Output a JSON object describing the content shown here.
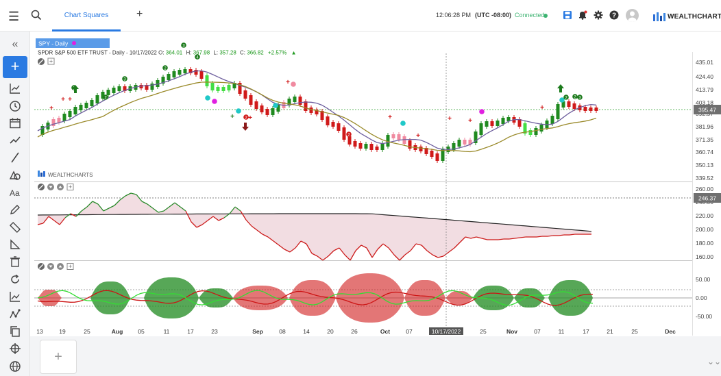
{
  "header": {
    "tab_label": "Chart Squares",
    "time": "12:06:28 PM",
    "timezone": "(UTC -08:00)",
    "status": "Connected",
    "brand": "WEALTHCHARTS"
  },
  "chart": {
    "badge": "SPY - Daily",
    "info_name": "SPDR S&P 500 ETF TRUST",
    "info_meta": " - Daily - 10/17/2022 ",
    "o_label": "O:",
    "o_value": "364.01",
    "h_label": "H:",
    "h_value": "367.98",
    "l_label": "L:",
    "l_value": "357.28",
    "c_label": "C:",
    "c_value": "366.82",
    "change": "+2.57%",
    "watermark": "WEALTHCHARTS",
    "crosshair_date": "10/17/2022",
    "price_axis": [
      "435.01",
      "424.40",
      "413.79",
      "403.18",
      "392.57",
      "381.96",
      "371.35",
      "360.74",
      "350.13",
      "339.52"
    ],
    "price_current": "395.47",
    "osc1_axis": [
      "260.00",
      "240.00",
      "220.00",
      "200.00",
      "180.00",
      "160.00"
    ],
    "osc1_current": "246.37",
    "osc2_axis": [
      "50.00",
      "0.00",
      "-50.00"
    ],
    "x_labels": [
      "13",
      "19",
      "25",
      "Aug",
      "05",
      "11",
      "17",
      "23",
      "Sep",
      "08",
      "14",
      "20",
      "26",
      "Oct",
      "07",
      "10/17/2022",
      "25",
      "Nov",
      "07",
      "11",
      "17",
      "21",
      "25",
      "Dec"
    ],
    "colors": {
      "up": "#1f8a1f",
      "down": "#d01a1a",
      "light_up": "#44dd44",
      "light_down": "#f08aa0",
      "ma1": "#6e5f9e",
      "ma2": "#9a8a2a",
      "accent": "#2a7ae2"
    }
  },
  "sidebar": {
    "icons": [
      "collapse-icon",
      "add-icon",
      "indicator-icon",
      "clock-icon",
      "calendar-icon",
      "trend-icon",
      "line-tool-icon",
      "shapes-icon",
      "text-icon",
      "pencil-icon",
      "ruler-icon",
      "angle-icon",
      "trash-icon",
      "refresh-icon",
      "chart-icon",
      "pattern-icon",
      "copy-icon",
      "crosshair-icon",
      "globe-icon"
    ]
  },
  "footer": {
    "add_label": "+"
  }
}
